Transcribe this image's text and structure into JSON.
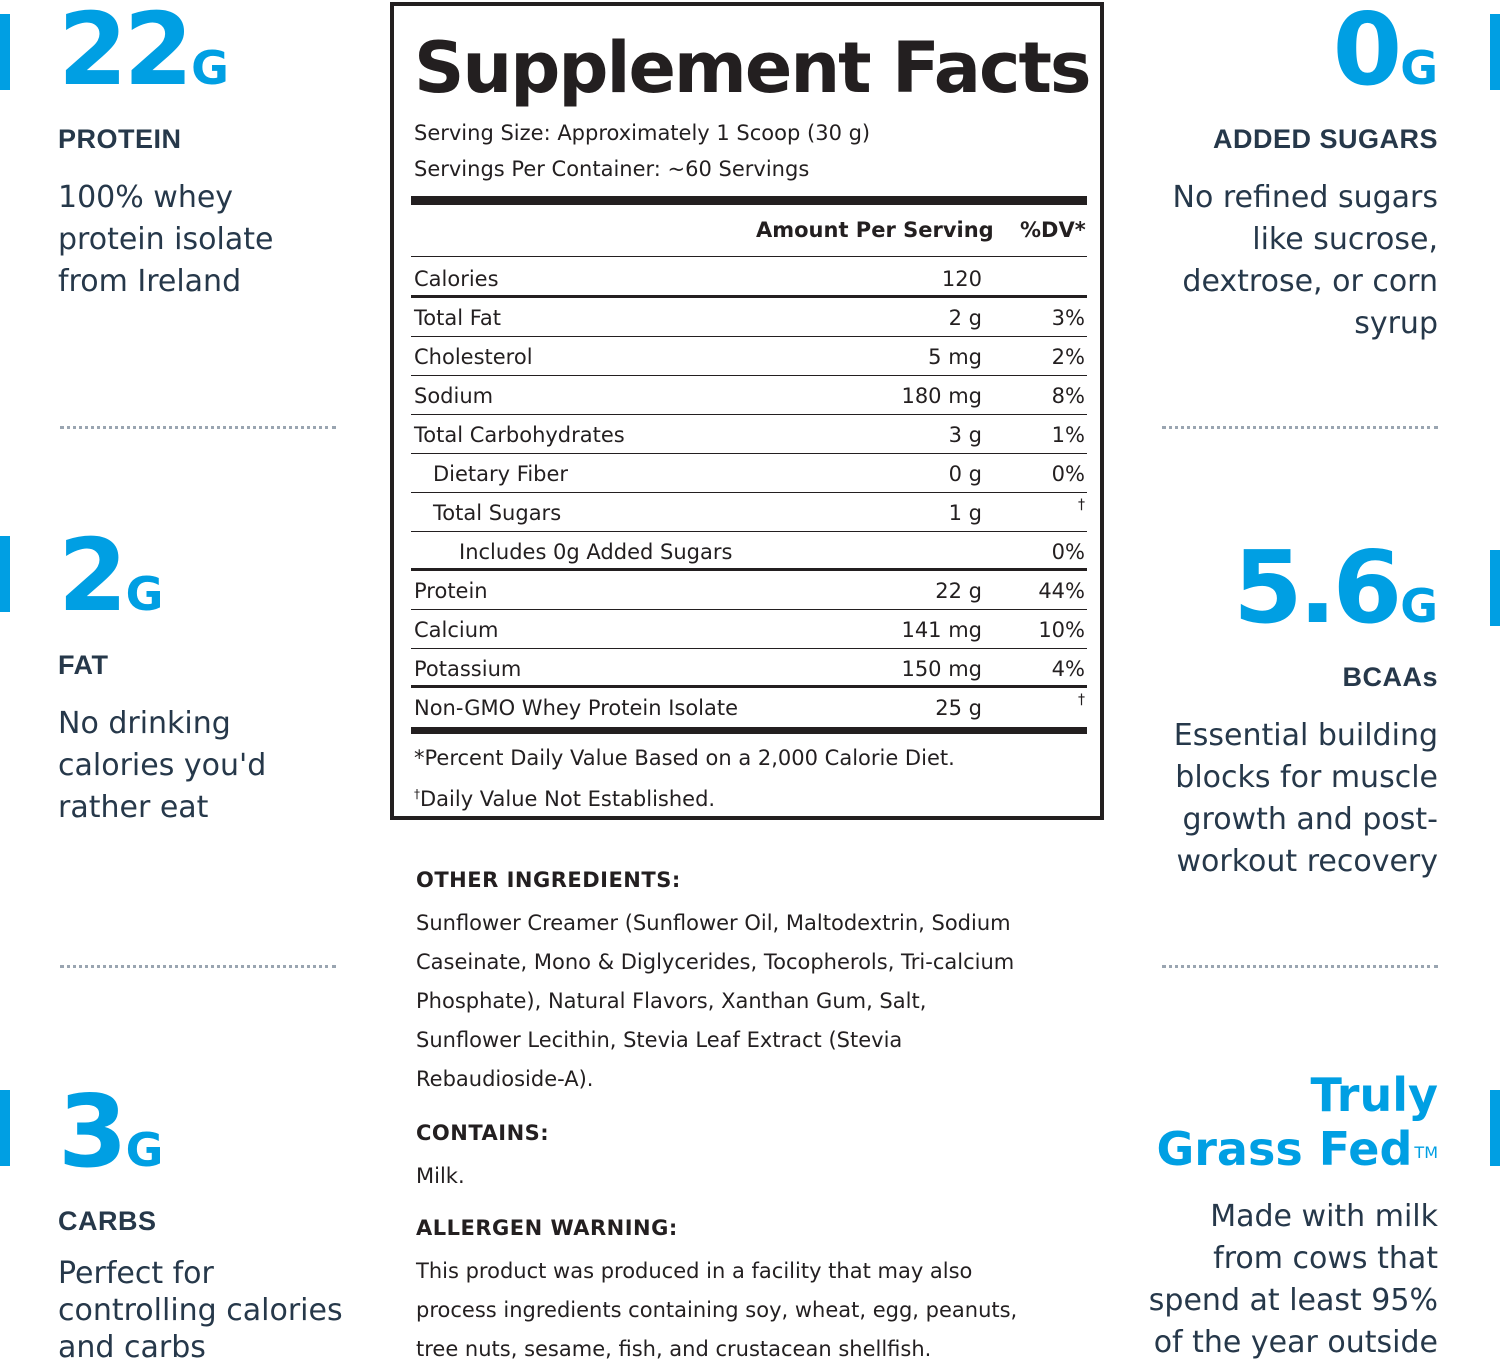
{
  "colors": {
    "accent": "#009fe3",
    "text": "#26384a",
    "panel_border": "#231f20"
  },
  "left": {
    "protein": {
      "value": "22",
      "unit": "G",
      "label": "PROTEIN",
      "desc": [
        "100% whey",
        "protein isolate",
        "from Ireland"
      ]
    },
    "fat": {
      "value": "2",
      "unit": "G",
      "label": "FAT",
      "desc": [
        "No drinking",
        "calories you'd",
        "rather eat"
      ]
    },
    "carbs": {
      "value": "3",
      "unit": "G",
      "label": "CARBS",
      "desc": [
        "Perfect for",
        "controlling calories",
        "and carbs"
      ]
    }
  },
  "right": {
    "sugars": {
      "value": "0",
      "unit": "G",
      "label": "ADDED SUGARS",
      "desc": [
        "No refined sugars",
        "like sucrose,",
        "dextrose, or corn",
        "syrup"
      ]
    },
    "bcaa": {
      "value": "5.6",
      "unit": "G",
      "label": "BCAAs",
      "desc": [
        "Essential building",
        "blocks for muscle",
        "growth and post-",
        "workout recovery"
      ]
    },
    "grass": {
      "title1": "Truly",
      "title2": "Grass Fed",
      "tm": "TM",
      "desc": [
        "Made with milk",
        "from cows that",
        "spend at least 95%",
        "of the year outside"
      ]
    }
  },
  "facts": {
    "title": "Supplement Facts",
    "serving_size": "Serving Size: Approximately 1 Scoop (30 g)",
    "servings_per_container": "Servings Per Container: ~60 Servings",
    "amount_header": "Amount Per Serving",
    "dv_header": "%DV*",
    "rows": [
      {
        "name": "Calories",
        "amount": "120",
        "dv": ""
      },
      {
        "name": "Total Fat",
        "amount": "2 g",
        "dv": "3%"
      },
      {
        "name": "Cholesterol",
        "amount": "5 mg",
        "dv": "2%"
      },
      {
        "name": "Sodium",
        "amount": "180 mg",
        "dv": "8%"
      },
      {
        "name": "Total Carbohydrates",
        "amount": "3 g",
        "dv": "1%"
      },
      {
        "name": "Dietary Fiber",
        "amount": "0 g",
        "dv": "0%"
      },
      {
        "name": "Total Sugars",
        "amount": "1 g",
        "dv": "†"
      },
      {
        "name": "Includes 0g Added Sugars",
        "amount": "",
        "dv": "0%"
      },
      {
        "name": "Protein",
        "amount": "22 g",
        "dv": "44%"
      },
      {
        "name": "Calcium",
        "amount": "141 mg",
        "dv": "10%"
      },
      {
        "name": "Potassium",
        "amount": "150 mg",
        "dv": "4%"
      },
      {
        "name": "Non-GMO Whey Protein Isolate",
        "amount": "25 g",
        "dv": "†"
      }
    ],
    "footnote1": "*Percent Daily Value Based on a 2,000 Calorie Diet.",
    "footnote2_mark": "†",
    "footnote2": "Daily Value Not Established."
  },
  "ingredients": {
    "other_heading": "OTHER INGREDIENTS:",
    "other_lines": [
      "Sunflower Creamer (Sunflower Oil, Maltodextrin, Sodium",
      "Caseinate, Mono & Diglycerides, Tocopherols, Tri-calcium",
      "Phosphate), Natural Flavors, Xanthan Gum, Salt,",
      "Sunflower Lecithin, Stevia Leaf Extract (Stevia",
      "Rebaudioside-A)."
    ],
    "contains_heading": "CONTAINS:",
    "contains": "Milk.",
    "allergen_heading": "ALLERGEN WARNING:",
    "allergen_lines": [
      "This product was produced in a facility that may also",
      "process ingredients containing soy, wheat, egg, peanuts,",
      "tree nuts, sesame, fish, and crustacean shellfish."
    ]
  }
}
